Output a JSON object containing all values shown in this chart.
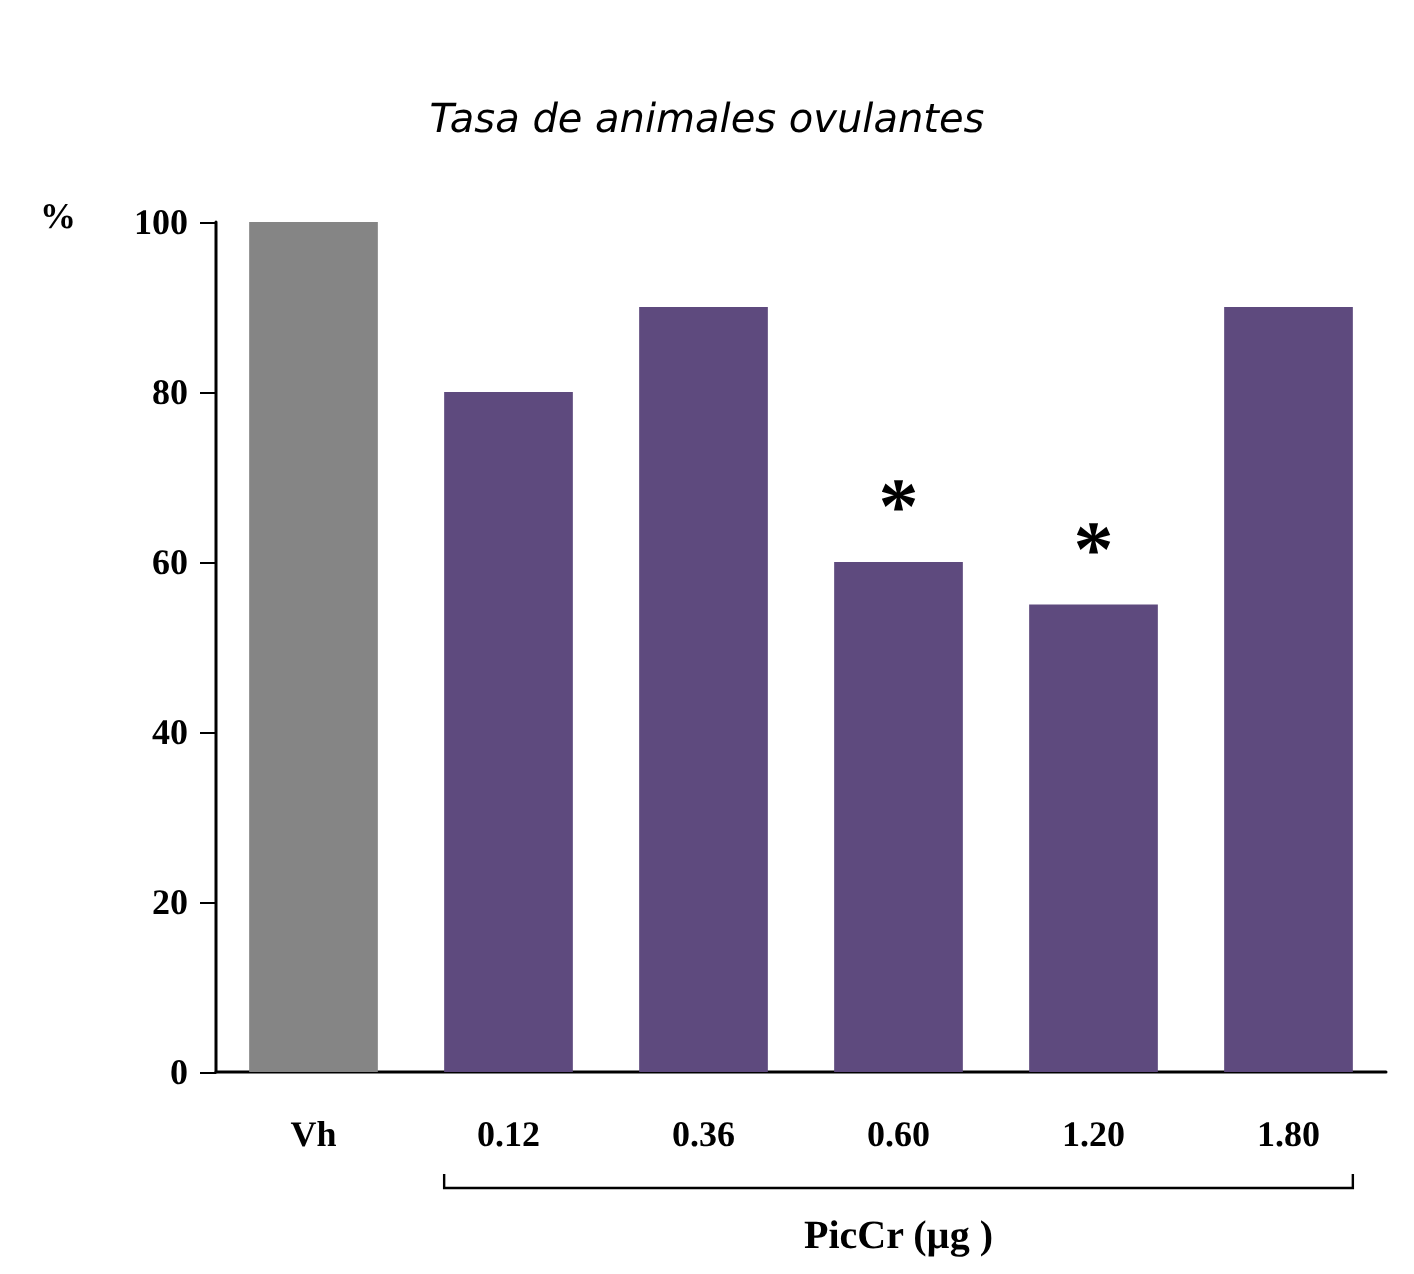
{
  "chart_data": {
    "type": "bar",
    "title": "Tasa de animales ovulantes",
    "ylabel": "%",
    "xlabel": "PicCr (µg )",
    "categories": [
      "Vh",
      "0.12",
      "0.36",
      "0.60",
      "1.20",
      "1.80"
    ],
    "values": [
      100,
      80,
      90,
      60,
      55,
      90
    ],
    "colors": [
      "#858585",
      "#5e4a7e",
      "#5e4a7e",
      "#5e4a7e",
      "#5e4a7e",
      "#5e4a7e"
    ],
    "ylim": [
      0,
      100
    ],
    "yticks": [
      0,
      20,
      40,
      60,
      80,
      100
    ],
    "grid": false,
    "annotations": [
      {
        "text": "*",
        "x": "0.60",
        "y": 60
      },
      {
        "text": "*",
        "x": "1.20",
        "y": 55
      }
    ]
  }
}
